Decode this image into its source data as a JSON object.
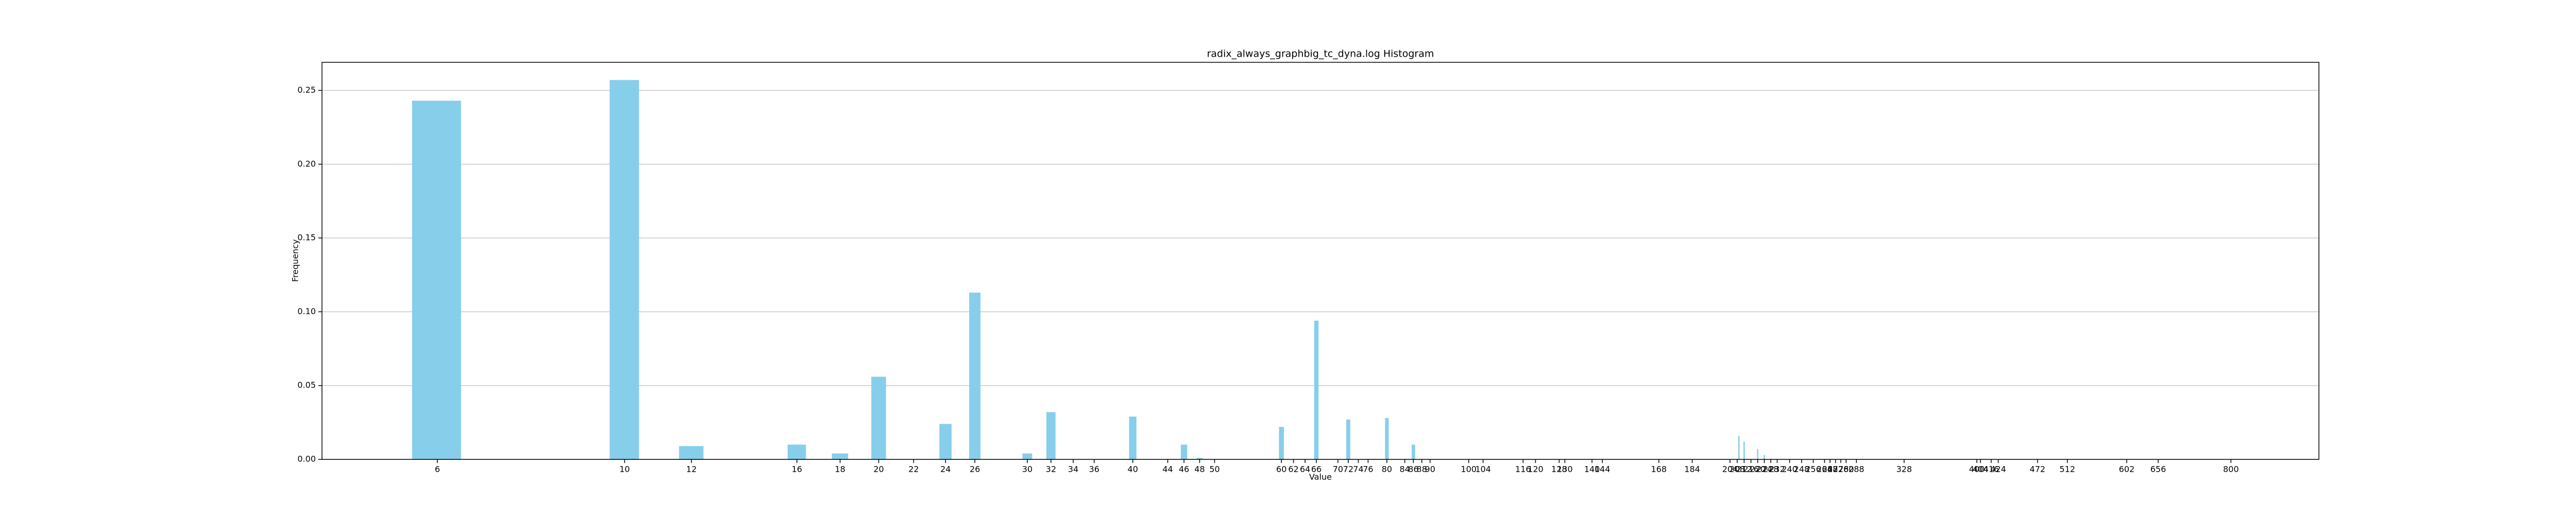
{
  "chart_data": {
    "type": "bar",
    "title": "radix_always_graphbig_tc_dyna.log Histogram",
    "xlabel": "Value",
    "ylabel": "Frequency",
    "x": [
      6,
      10,
      12,
      16,
      18,
      20,
      24,
      26,
      30,
      32,
      40,
      46,
      48,
      60,
      66,
      72,
      80,
      86,
      209,
      212,
      220,
      224
    ],
    "values": [
      0.243,
      0.257,
      0.009,
      0.01,
      0.004,
      0.056,
      0.024,
      0.113,
      0.004,
      0.032,
      0.029,
      0.01,
      0.001,
      0.022,
      0.094,
      0.027,
      0.028,
      0.01,
      0.016,
      0.012,
      0.007,
      0.003
    ],
    "color": "#87ceeb",
    "xscale": "log",
    "xlim": [
      4.38,
      1017
    ],
    "ylim": [
      0,
      0.269
    ],
    "xticks": [
      6,
      10,
      12,
      16,
      18,
      20,
      22,
      24,
      26,
      30,
      32,
      34,
      36,
      40,
      44,
      46,
      48,
      50,
      60,
      62,
      64,
      66,
      70,
      72,
      74,
      76,
      80,
      84,
      86,
      88,
      90,
      100,
      104,
      116,
      120,
      128,
      130,
      140,
      144,
      168,
      184,
      204,
      208,
      212,
      216,
      220,
      224,
      228,
      232,
      240,
      248,
      256,
      264,
      268,
      272,
      276,
      280,
      288,
      328,
      400,
      404,
      416,
      424,
      472,
      512,
      602,
      656,
      800
    ],
    "yticks": [
      {
        "value": 0,
        "label": "0.00"
      },
      {
        "value": 0.05,
        "label": "0.05"
      },
      {
        "value": 0.1,
        "label": "0.10"
      },
      {
        "value": 0.15,
        "label": "0.15"
      },
      {
        "value": 0.2,
        "label": "0.20"
      },
      {
        "value": 0.25,
        "label": "0.25"
      }
    ],
    "grid": true
  }
}
